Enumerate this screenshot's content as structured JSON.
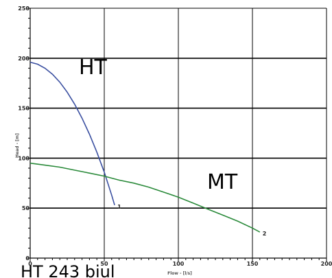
{
  "chart_data": {
    "type": "line",
    "title": "",
    "xlabel": "Flow - [l/s]",
    "ylabel": "Head - [m]",
    "xlim": [
      0,
      200
    ],
    "ylim": [
      0,
      250
    ],
    "x_ticks": [
      "0",
      "50",
      "100",
      "150",
      "200"
    ],
    "y_ticks": [
      "0",
      "50",
      "100",
      "150",
      "200",
      "250"
    ],
    "grid": true,
    "series": [
      {
        "name": "HT",
        "end_label": "1",
        "color": "#3a4fa0",
        "points": [
          [
            0,
            196
          ],
          [
            5,
            194
          ],
          [
            10,
            190
          ],
          [
            15,
            184
          ],
          [
            20,
            176
          ],
          [
            25,
            166
          ],
          [
            30,
            154
          ],
          [
            35,
            140
          ],
          [
            40,
            124
          ],
          [
            45,
            106
          ],
          [
            50,
            86
          ],
          [
            55,
            63
          ],
          [
            57,
            53
          ]
        ]
      },
      {
        "name": "MT",
        "end_label": "2",
        "color": "#2a8a3a",
        "points": [
          [
            0,
            95
          ],
          [
            10,
            93
          ],
          [
            20,
            91
          ],
          [
            30,
            88
          ],
          [
            40,
            85
          ],
          [
            50,
            82
          ],
          [
            60,
            78
          ],
          [
            70,
            75
          ],
          [
            80,
            71
          ],
          [
            90,
            66
          ],
          [
            100,
            61
          ],
          [
            110,
            55
          ],
          [
            120,
            49
          ],
          [
            130,
            43
          ],
          [
            140,
            37
          ],
          [
            150,
            30
          ],
          [
            155,
            26
          ]
        ]
      }
    ],
    "caption": "HT 243 biul"
  }
}
